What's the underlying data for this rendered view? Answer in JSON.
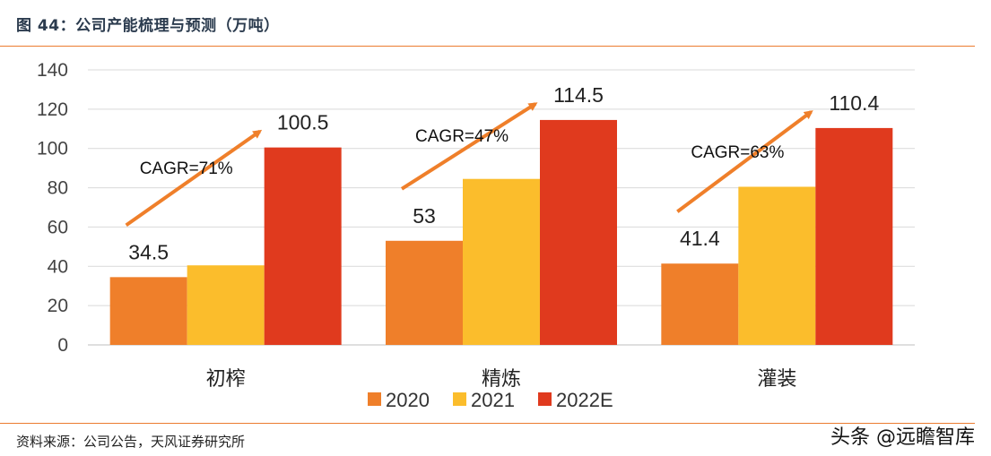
{
  "title": "图 44：公司产能梳理与预测（万吨）",
  "source": "资料来源：公司公告，天风证券研究所",
  "watermark": "头条 @远瞻智库",
  "colors": {
    "rule": "#ec7c30",
    "s2020": "#ef7f2a",
    "s2021": "#fbbd2c",
    "s2022": "#e03a1e",
    "arrow": "#ef7f2a"
  },
  "chart_data": {
    "type": "bar",
    "categories": [
      "初榨",
      "精炼",
      "灌装"
    ],
    "series": [
      {
        "name": "2020",
        "values": [
          34.5,
          53,
          41.4
        ]
      },
      {
        "name": "2021",
        "values": [
          40.5,
          84.5,
          80.5
        ]
      },
      {
        "name": "2022E",
        "values": [
          100.5,
          114.5,
          110.4
        ]
      }
    ],
    "data_labels": [
      {
        "category": "初榨",
        "series": "2020",
        "text": "34.5"
      },
      {
        "category": "初榨",
        "series": "2022E",
        "text": "100.5"
      },
      {
        "category": "精炼",
        "series": "2020",
        "text": "53"
      },
      {
        "category": "精炼",
        "series": "2022E",
        "text": "114.5"
      },
      {
        "category": "灌装",
        "series": "2020",
        "text": "41.4"
      },
      {
        "category": "灌装",
        "series": "2022E",
        "text": "110.4"
      }
    ],
    "annotations": [
      "CAGR=71%",
      "CAGR=47%",
      "CAGR=63%"
    ],
    "ylim": [
      0,
      140
    ],
    "yticks": [
      0,
      20,
      40,
      60,
      80,
      100,
      120,
      140
    ],
    "grid": true,
    "legend": "bottom"
  }
}
